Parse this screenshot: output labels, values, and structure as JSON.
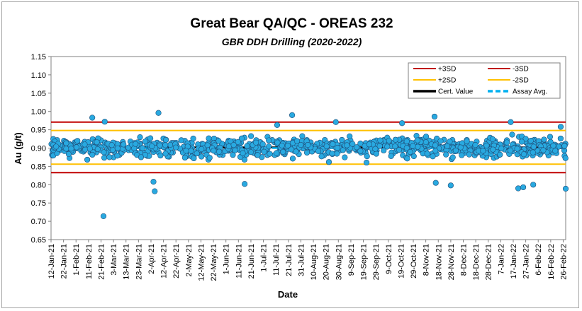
{
  "chart_data": {
    "type": "scatter",
    "title": "Great Bear QA/QC - OREAS 232",
    "subtitle": "GBR DDH Drilling (2020-2022)",
    "xlabel": "Date",
    "ylabel": "Au (g/t)",
    "ylim": [
      0.65,
      1.15
    ],
    "y_ticks": [
      "0.65",
      "0.70",
      "0.75",
      "0.80",
      "0.85",
      "0.90",
      "0.95",
      "1.00",
      "1.05",
      "1.10",
      "1.15"
    ],
    "x_ticks": [
      "12-Jan-21",
      "22-Jan-21",
      "1-Feb-21",
      "11-Feb-21",
      "21-Feb-21",
      "3-Mar-21",
      "13-Mar-21",
      "23-Mar-21",
      "2-Apr-21",
      "12-Apr-21",
      "22-Apr-21",
      "2-May-21",
      "12-May-21",
      "22-May-21",
      "1-Jun-21",
      "11-Jun-21",
      "21-Jun-21",
      "1-Jul-21",
      "11-Jul-21",
      "21-Jul-21",
      "31-Jul-21",
      "10-Aug-21",
      "20-Aug-21",
      "30-Aug-21",
      "9-Sep-21",
      "19-Sep-21",
      "29-Sep-21",
      "9-Oct-21",
      "19-Oct-21",
      "29-Oct-21",
      "8-Nov-21",
      "18-Nov-21",
      "28-Nov-21",
      "8-Dec-21",
      "18-Dec-21",
      "28-Dec-21",
      "7-Jan-22",
      "17-Jan-22",
      "27-Jan-22",
      "6-Feb-22",
      "16-Feb-22",
      "26-Feb-22"
    ],
    "x_range": [
      "12-Jan-21",
      "28-Feb-22"
    ],
    "grid": false,
    "legend_position": "top-right",
    "reference_lines": [
      {
        "name": "+3SD",
        "value": 0.971,
        "color": "#c00000"
      },
      {
        "name": "-3SD",
        "value": 0.833,
        "color": "#c00000"
      },
      {
        "name": "+2SD",
        "value": 0.948,
        "color": "#ffc000"
      },
      {
        "name": "-2SD",
        "value": 0.856,
        "color": "#ffc000"
      },
      {
        "name": "Cert. Value",
        "value": 0.902,
        "color": "#000000"
      },
      {
        "name": "Assay Avg.",
        "value": 0.9,
        "color": "#00b0f0"
      }
    ],
    "series": [
      {
        "kind": "scatter",
        "color": "#29a9e0",
        "points": [
          [
            "14-Feb-21",
            0.983
          ],
          [
            "24-Feb-21",
            0.972
          ],
          [
            "23-Feb-21",
            0.714
          ],
          [
            "8-Apr-21",
            0.996
          ],
          [
            "5-Apr-21",
            0.782
          ],
          [
            "4-Apr-21",
            0.808
          ],
          [
            "16-Jun-21",
            0.802
          ],
          [
            "12-Jul-21",
            0.963
          ],
          [
            "24-Jul-21",
            0.99
          ],
          [
            "28-Aug-21",
            0.971
          ],
          [
            "20-Oct-21",
            0.968
          ],
          [
            "15-Nov-21",
            0.986
          ],
          [
            "16-Nov-21",
            0.805
          ],
          [
            "28-Nov-21",
            0.798
          ],
          [
            "15-Jan-22",
            0.971
          ],
          [
            "21-Jan-22",
            0.79
          ],
          [
            "25-Jan-22",
            0.793
          ],
          [
            "2-Feb-22",
            0.8
          ],
          [
            "28-Feb-22",
            0.789
          ],
          [
            "24-Feb-22",
            0.958
          ]
        ]
      }
    ]
  }
}
